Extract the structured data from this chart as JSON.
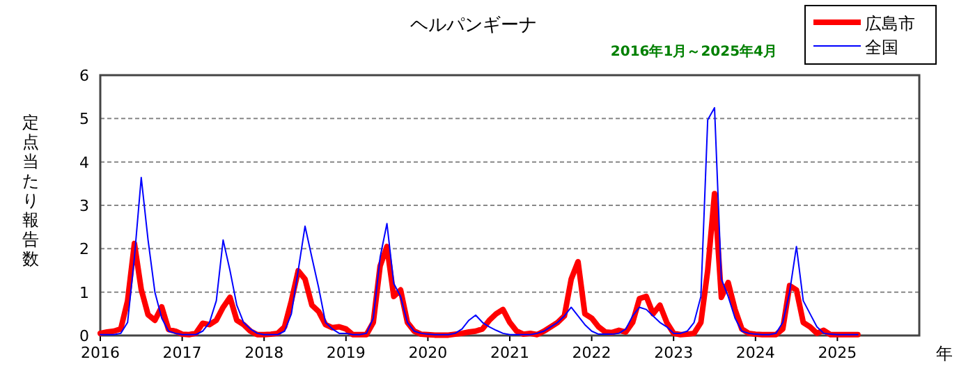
{
  "chart_data": {
    "type": "line",
    "title": "ヘルパンギーナ",
    "subtitle": "2016年1月～2025年4月",
    "ylabel": "定点当たり報告数",
    "xlabel": "年",
    "x": [
      "2016-01",
      "2016-02",
      "2016-03",
      "2016-04",
      "2016-05",
      "2016-06",
      "2016-07",
      "2016-08",
      "2016-09",
      "2016-10",
      "2016-11",
      "2016-12",
      "2017-01",
      "2017-02",
      "2017-03",
      "2017-04",
      "2017-05",
      "2017-06",
      "2017-07",
      "2017-08",
      "2017-09",
      "2017-10",
      "2017-11",
      "2017-12",
      "2018-01",
      "2018-02",
      "2018-03",
      "2018-04",
      "2018-05",
      "2018-06",
      "2018-07",
      "2018-08",
      "2018-09",
      "2018-10",
      "2018-11",
      "2018-12",
      "2019-01",
      "2019-02",
      "2019-03",
      "2019-04",
      "2019-05",
      "2019-06",
      "2019-07",
      "2019-08",
      "2019-09",
      "2019-10",
      "2019-11",
      "2019-12",
      "2020-01",
      "2020-02",
      "2020-03",
      "2020-04",
      "2020-05",
      "2020-06",
      "2020-07",
      "2020-08",
      "2020-09",
      "2020-10",
      "2020-11",
      "2020-12",
      "2021-01",
      "2021-02",
      "2021-03",
      "2021-04",
      "2021-05",
      "2021-06",
      "2021-07",
      "2021-08",
      "2021-09",
      "2021-10",
      "2021-11",
      "2021-12",
      "2022-01",
      "2022-02",
      "2022-03",
      "2022-04",
      "2022-05",
      "2022-06",
      "2022-07",
      "2022-08",
      "2022-09",
      "2022-10",
      "2022-11",
      "2022-12",
      "2023-01",
      "2023-02",
      "2023-03",
      "2023-04",
      "2023-05",
      "2023-06",
      "2023-07",
      "2023-08",
      "2023-09",
      "2023-10",
      "2023-11",
      "2023-12",
      "2024-01",
      "2024-02",
      "2024-03",
      "2024-04",
      "2024-05",
      "2024-06",
      "2024-07",
      "2024-08",
      "2024-09",
      "2024-10",
      "2024-11",
      "2024-12",
      "2025-01",
      "2025-02",
      "2025-03",
      "2025-04"
    ],
    "series": [
      {
        "name": "広島市",
        "color": "#ff0000",
        "values": [
          0.05,
          0.08,
          0.1,
          0.15,
          0.8,
          2.12,
          1.06,
          0.48,
          0.35,
          0.66,
          0.14,
          0.1,
          0.03,
          0.02,
          0.05,
          0.28,
          0.25,
          0.35,
          0.65,
          0.88,
          0.35,
          0.25,
          0.1,
          0.02,
          0.02,
          0.03,
          0.05,
          0.2,
          0.8,
          1.49,
          1.3,
          0.7,
          0.55,
          0.25,
          0.18,
          0.2,
          0.15,
          0.02,
          0.02,
          0.02,
          0.3,
          1.6,
          2.05,
          0.9,
          1.05,
          0.3,
          0.1,
          0.03,
          0.02,
          0.01,
          0.01,
          0.01,
          0.03,
          0.05,
          0.08,
          0.1,
          0.15,
          0.35,
          0.5,
          0.6,
          0.3,
          0.1,
          0.03,
          0.05,
          0.02,
          0.1,
          0.2,
          0.3,
          0.45,
          1.3,
          1.7,
          0.5,
          0.4,
          0.2,
          0.08,
          0.07,
          0.12,
          0.08,
          0.3,
          0.85,
          0.9,
          0.5,
          0.7,
          0.3,
          0.05,
          0.02,
          0.03,
          0.05,
          0.3,
          1.5,
          3.27,
          0.88,
          1.22,
          0.6,
          0.15,
          0.05,
          0.03,
          0.02,
          0.02,
          0.02,
          0.15,
          1.15,
          1.05,
          0.3,
          0.2,
          0.05,
          0.12,
          0.02,
          0.02,
          0.02,
          0.02,
          0.02
        ]
      },
      {
        "name": "全国",
        "color": "#0000ff",
        "values": [
          0.02,
          0.02,
          0.02,
          0.05,
          0.3,
          1.8,
          3.64,
          2.2,
          1.0,
          0.4,
          0.1,
          0.05,
          0.02,
          0.02,
          0.02,
          0.1,
          0.3,
          0.8,
          2.2,
          1.5,
          0.7,
          0.3,
          0.15,
          0.05,
          0.02,
          0.02,
          0.02,
          0.1,
          0.5,
          1.5,
          2.52,
          1.8,
          1.1,
          0.3,
          0.15,
          0.05,
          0.05,
          0.02,
          0.02,
          0.05,
          0.4,
          1.8,
          2.58,
          1.2,
          0.9,
          0.3,
          0.1,
          0.05,
          0.03,
          0.02,
          0.02,
          0.02,
          0.05,
          0.15,
          0.35,
          0.47,
          0.3,
          0.2,
          0.12,
          0.05,
          0.02,
          0.02,
          0.02,
          0.02,
          0.05,
          0.1,
          0.2,
          0.3,
          0.45,
          0.65,
          0.45,
          0.25,
          0.1,
          0.03,
          0.03,
          0.03,
          0.05,
          0.15,
          0.45,
          0.65,
          0.6,
          0.45,
          0.3,
          0.2,
          0.05,
          0.05,
          0.1,
          0.3,
          0.9,
          4.97,
          5.25,
          1.3,
          0.9,
          0.4,
          0.1,
          0.05,
          0.03,
          0.02,
          0.02,
          0.05,
          0.3,
          1.0,
          2.05,
          0.8,
          0.5,
          0.2,
          0.05,
          0.03,
          0.02,
          0.02,
          0.02,
          0.02
        ]
      }
    ],
    "xlim": [
      "2016",
      "2026"
    ],
    "xticks": [
      "2016",
      "2017",
      "2018",
      "2019",
      "2020",
      "2021",
      "2022",
      "2023",
      "2024",
      "2025"
    ],
    "ylim": [
      0,
      6
    ],
    "yticks": [
      0,
      1,
      2,
      3,
      4,
      5,
      6
    ],
    "grid": "y",
    "legend": "top right",
    "line_style": "solid",
    "marker": "none"
  }
}
